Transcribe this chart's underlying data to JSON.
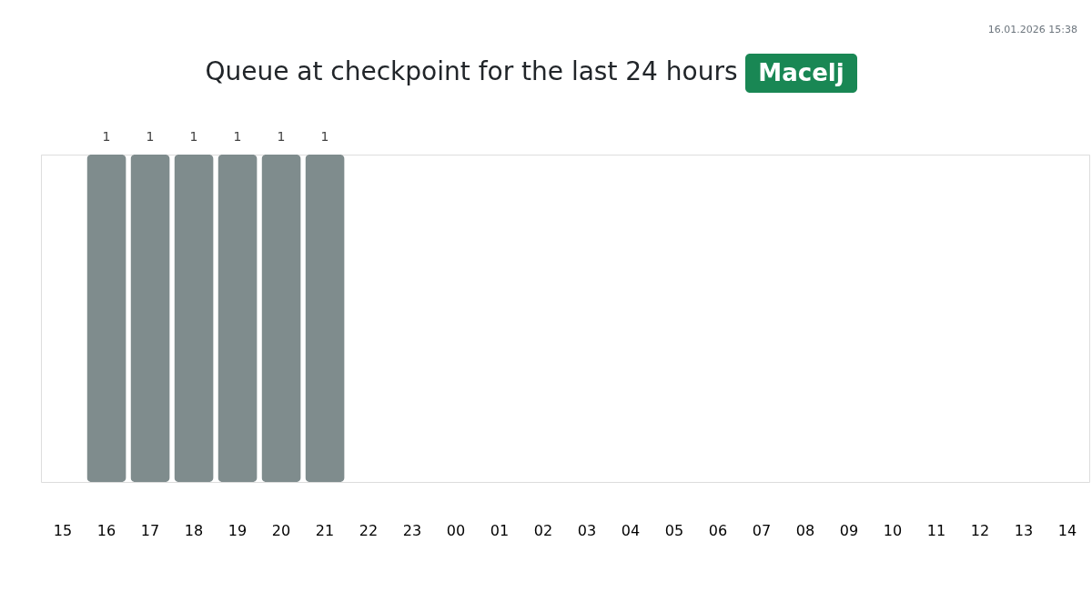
{
  "chart_data": {
    "type": "bar",
    "title": "Queue at checkpoint for the last 24 hours",
    "subtitle": "Macelj",
    "annotations": [
      "16.01.2026 15:38"
    ],
    "categories": [
      "15",
      "16",
      "17",
      "18",
      "19",
      "20",
      "21",
      "22",
      "23",
      "00",
      "01",
      "02",
      "03",
      "04",
      "05",
      "06",
      "07",
      "08",
      "09",
      "10",
      "11",
      "12",
      "13",
      "14"
    ],
    "values": [
      null,
      1,
      1,
      1,
      1,
      1,
      1,
      null,
      null,
      null,
      null,
      null,
      null,
      null,
      null,
      null,
      null,
      null,
      null,
      null,
      null,
      null,
      null,
      null
    ],
    "color": "#7f8c8d",
    "data_labels": true,
    "tick_labels": "x"
  }
}
